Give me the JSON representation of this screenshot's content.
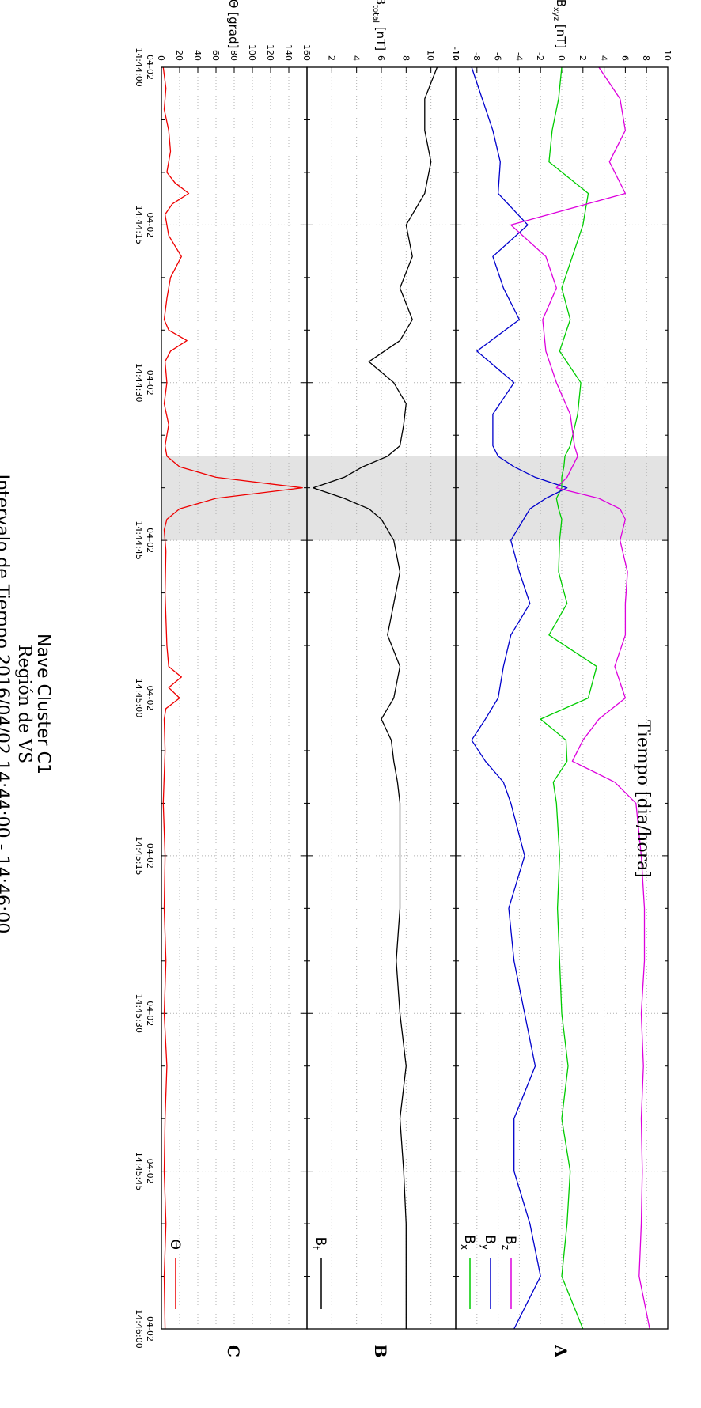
{
  "chart_data": {
    "type": "line",
    "orientation": "rotated-90-clockwise",
    "title": [
      "Nave Cluster C1",
      "Región de VS",
      "Intervalo de Tiempo 2016/04/02 14:44:00 - 14:46:00"
    ],
    "xlabel": "Tiempo [dia/hora]",
    "xlim": [
      "2016-04-02 14:44:00",
      "2016-04-02 14:46:00"
    ],
    "xtick_labels": [
      {
        "date": "04-02",
        "time": "14:44:00"
      },
      {
        "date": "04-02",
        "time": "14:44:15"
      },
      {
        "date": "04-02",
        "time": "14:44:30"
      },
      {
        "date": "04-02",
        "time": "14:44:45"
      },
      {
        "date": "04-02",
        "time": "14:45:00"
      },
      {
        "date": "04-02",
        "time": "14:45:15"
      },
      {
        "date": "04-02",
        "time": "14:45:30"
      },
      {
        "date": "04-02",
        "time": "14:45:45"
      },
      {
        "date": "04-02",
        "time": "14:46:00"
      }
    ],
    "shaded_interval": [
      "2016-04-02 14:44:37",
      "2016-04-02 14:44:45"
    ],
    "grid": true,
    "panels": [
      {
        "id": "A",
        "label": "A",
        "ylabel": "B",
        "ylabel_sub": "xyz",
        "ylabel_unit": " [nT]",
        "ylim": [
          -10,
          10
        ],
        "yticks": [
          -10,
          -8,
          -6,
          -4,
          -2,
          0,
          2,
          4,
          6,
          8,
          10
        ],
        "legend": [
          {
            "name": "B",
            "sub": "x",
            "color": "#00cc00"
          },
          {
            "name": "B",
            "sub": "y",
            "color": "#0000cc"
          },
          {
            "name": "B",
            "sub": "z",
            "color": "#dd00dd"
          }
        ],
        "series": [
          {
            "name": "Bx",
            "color": "#00cc00",
            "x": [
              0,
              3,
              6,
              9,
              12,
              15,
              18,
              21,
              24,
              27,
              30,
              33,
              36,
              37,
              38,
              39,
              40,
              41,
              42,
              43,
              45,
              48,
              51,
              54,
              57,
              60,
              62,
              64,
              66,
              68,
              70,
              75,
              80,
              85,
              90,
              95,
              100,
              105,
              110,
              115,
              120
            ],
            "y": [
              0.0,
              -0.3,
              -0.9,
              -1.2,
              2.5,
              2.0,
              1.0,
              0.0,
              0.8,
              -0.2,
              1.8,
              1.5,
              0.8,
              0.3,
              0.2,
              0.0,
              0.0,
              -0.5,
              -0.3,
              0.0,
              -0.2,
              -0.3,
              0.5,
              -1.2,
              3.3,
              2.5,
              -2.0,
              0.4,
              0.5,
              -0.8,
              -0.5,
              -0.2,
              -0.4,
              -0.2,
              0.0,
              0.6,
              0.0,
              0.8,
              0.5,
              0.0,
              2.0
            ]
          },
          {
            "name": "By",
            "color": "#0000cc",
            "x": [
              0,
              3,
              6,
              9,
              12,
              15,
              18,
              21,
              24,
              27,
              30,
              33,
              36,
              37,
              38,
              39,
              40,
              41,
              42,
              43,
              45,
              48,
              51,
              54,
              57,
              60,
              62,
              64,
              66,
              68,
              70,
              75,
              80,
              85,
              90,
              95,
              100,
              105,
              110,
              115,
              120
            ],
            "y": [
              -8.5,
              -7.5,
              -6.5,
              -5.8,
              -6.0,
              -3.2,
              -6.5,
              -5.5,
              -4.0,
              -8.0,
              -4.5,
              -6.5,
              -6.5,
              -6.0,
              -4.5,
              -2.5,
              0.5,
              -1.5,
              -3.0,
              -3.6,
              -4.8,
              -4.0,
              -3.0,
              -4.8,
              -5.5,
              -6.0,
              -7.2,
              -8.5,
              -7.2,
              -5.5,
              -4.8,
              -3.5,
              -5.0,
              -4.5,
              -3.5,
              -2.5,
              -4.5,
              -4.5,
              -3.0,
              -2.0,
              -4.5
            ]
          },
          {
            "name": "Bz",
            "color": "#dd00dd",
            "x": [
              0,
              3,
              6,
              9,
              12,
              15,
              18,
              21,
              24,
              27,
              30,
              33,
              36,
              37,
              38,
              39,
              40,
              41,
              42,
              43,
              45,
              48,
              51,
              54,
              57,
              60,
              62,
              64,
              66,
              68,
              70,
              75,
              80,
              85,
              90,
              95,
              100,
              105,
              110,
              115,
              120
            ],
            "y": [
              3.5,
              5.5,
              6.0,
              4.5,
              6.0,
              -4.8,
              -1.5,
              -0.5,
              -1.8,
              -1.5,
              -0.5,
              0.8,
              1.2,
              1.5,
              1.0,
              0.5,
              -0.5,
              3.5,
              5.5,
              6.0,
              5.5,
              6.2,
              6.0,
              6.0,
              5.0,
              6.0,
              3.5,
              2.0,
              1.0,
              5.0,
              7.0,
              7.5,
              7.8,
              7.8,
              7.5,
              7.7,
              7.5,
              7.6,
              7.5,
              7.3,
              8.3
            ]
          }
        ]
      },
      {
        "id": "B",
        "label": "B",
        "ylabel": "B",
        "ylabel_sub": "total",
        "ylabel_unit": " [nT]",
        "ylim": [
          0,
          12
        ],
        "yticks": [
          2,
          4,
          6,
          8,
          10,
          12
        ],
        "legend": [
          {
            "name": "B",
            "sub": "t",
            "color": "#000000"
          }
        ],
        "series": [
          {
            "name": "Bt",
            "color": "#000000",
            "x": [
              0,
              3,
              6,
              9,
              12,
              15,
              18,
              21,
              24,
              26,
              28,
              30,
              32,
              34,
              36,
              37,
              38,
              39,
              40,
              41,
              42,
              43,
              45,
              48,
              51,
              54,
              57,
              60,
              62,
              64,
              66,
              68,
              70,
              75,
              80,
              85,
              90,
              95,
              100,
              105,
              110,
              115,
              120
            ],
            "y": [
              10.5,
              9.5,
              9.5,
              10.0,
              9.5,
              8.0,
              8.5,
              7.5,
              8.5,
              7.5,
              5.0,
              7.0,
              8.0,
              7.8,
              7.5,
              6.5,
              4.5,
              3.0,
              0.5,
              3.0,
              5.0,
              6.0,
              7.0,
              7.5,
              7.0,
              6.5,
              7.5,
              7.0,
              6.0,
              6.8,
              7.0,
              7.3,
              7.5,
              7.5,
              7.5,
              7.2,
              7.5,
              8.0,
              7.5,
              7.8,
              8.0,
              8.0,
              8.0
            ]
          }
        ]
      },
      {
        "id": "C",
        "label": "C",
        "ylabel": "Θ",
        "ylabel_sub": "",
        "ylabel_unit": " [grad]",
        "ylim": [
          0,
          160
        ],
        "yticks": [
          0,
          20,
          40,
          60,
          80,
          100,
          120,
          140,
          160
        ],
        "legend": [
          {
            "name": "Θ",
            "sub": "",
            "color": "#ee0000"
          }
        ],
        "series": [
          {
            "name": "Θ",
            "color": "#ee0000",
            "x": [
              0,
              2,
              4,
              6,
              8,
              10,
              11,
              12,
              13,
              14,
              16,
              18,
              20,
              22,
              24,
              25,
              26,
              27,
              28,
              30,
              32,
              34,
              36,
              37,
              38,
              39,
              40,
              41,
              42,
              43,
              44,
              46,
              50,
              55,
              57,
              58,
              59,
              60,
              61,
              62,
              65,
              70,
              75,
              80,
              85,
              90,
              95,
              100,
              105,
              110,
              115,
              120
            ],
            "y": [
              2,
              5,
              3,
              8,
              10,
              6,
              15,
              30,
              12,
              4,
              8,
              22,
              10,
              6,
              3,
              8,
              28,
              10,
              4,
              6,
              3,
              8,
              4,
              6,
              20,
              60,
              155,
              60,
              20,
              6,
              3,
              5,
              4,
              6,
              8,
              22,
              8,
              20,
              5,
              3,
              4,
              2,
              4,
              3,
              5,
              3,
              6,
              4,
              3,
              5,
              3,
              4
            ]
          }
        ]
      }
    ]
  }
}
